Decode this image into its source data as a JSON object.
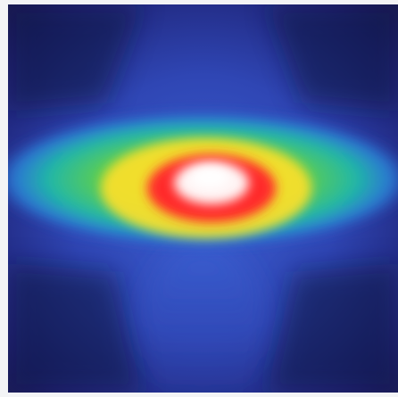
{
  "image": {
    "kind": "intensity-heatmap",
    "colormap": [
      "#ffffff",
      "#ff3030",
      "#ffd21e",
      "#7fdc3a",
      "#17b6a0",
      "#2f6fd6",
      "#2f46b4",
      "#15164a"
    ],
    "colormap_stops": [
      0.0,
      0.18,
      0.32,
      0.45,
      0.58,
      0.7,
      0.82,
      1.0
    ],
    "frame_color": "#f3f4f6",
    "background_deep": "#15164a",
    "background_mid": "#2f46b4",
    "hotspot_color": "#ffffff",
    "ring_colors": {
      "red": "#ff2b2b",
      "yellow": "#ffe01e",
      "green": "#74d63c",
      "cyan": "#18b2b8",
      "blue": "#2f64d2"
    }
  }
}
